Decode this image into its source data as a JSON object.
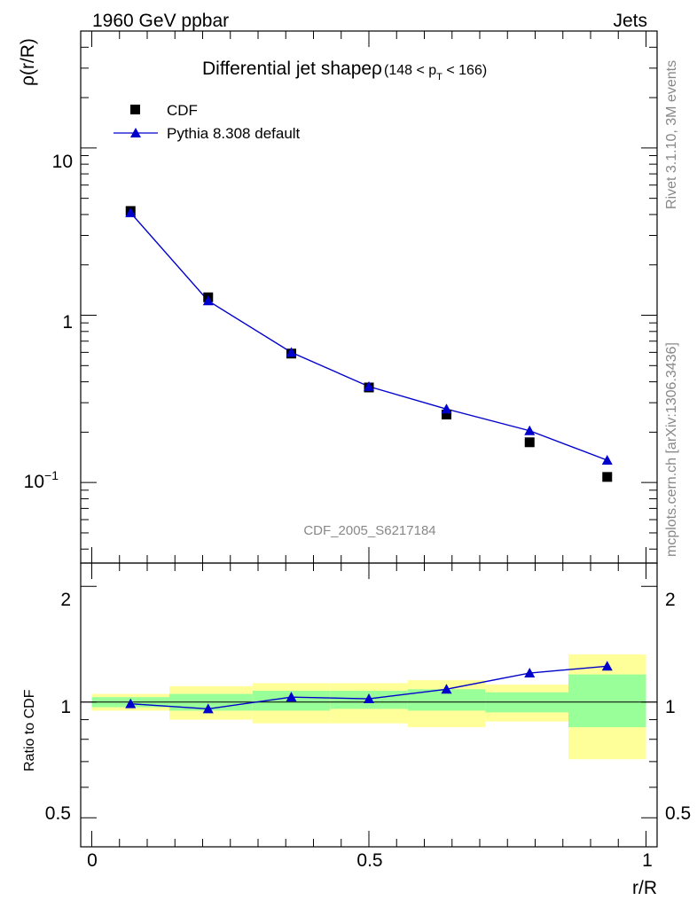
{
  "header": {
    "left": "1960 GeV ppbar",
    "right": "Jets",
    "side_rivet": "Rivet 3.1.10,  3M events",
    "side_mcplots": "mcplots.cern.ch [arXiv:1306.3436]"
  },
  "chart_data": [
    {
      "type": "scatter",
      "title": "Differential jet shapeρ",
      "title_range": "(148 < p",
      "title_sub": "T",
      "title_range_end": " < 166)",
      "ylabel": "ρ(r/R)",
      "yscale": "log",
      "ylim": [
        0.033,
        50
      ],
      "xlim": [
        -0.02,
        1.02
      ],
      "ytick_labels": [
        "10",
        "1",
        "10"
      ],
      "ytick_exponent": "−1",
      "watermark": "CDF_2005_S6217184",
      "legend": {
        "placement": "top-left",
        "data_label": "CDF",
        "mc_label": "Pythia 8.308 default"
      },
      "x": [
        0.07,
        0.21,
        0.36,
        0.5,
        0.64,
        0.79,
        0.93
      ],
      "series": [
        {
          "name": "CDF",
          "marker": "square",
          "color": "#000000",
          "values": [
            4.2,
            1.28,
            0.59,
            0.37,
            0.255,
            0.174,
            0.108
          ]
        },
        {
          "name": "Pythia 8.308 default",
          "marker": "triangle",
          "color": "#0000cc",
          "values": [
            4.1,
            1.22,
            0.6,
            0.375,
            0.275,
            0.204,
            0.136
          ]
        }
      ]
    },
    {
      "type": "line",
      "ylabel": "Ratio to CDF",
      "xlabel": "r/R",
      "ylim": [
        0.42,
        2.3
      ],
      "xlim": [
        -0.02,
        1.02
      ],
      "xtick_labels": [
        "0",
        "0.5",
        "1"
      ],
      "ytick_labels": [
        "2",
        "1",
        "0.5"
      ],
      "colors": {
        "band_outer": "#ffff99",
        "band_inner": "#99ff99",
        "line": "#0000cc"
      },
      "bins": [
        {
          "x0": 0.0,
          "x1": 0.14,
          "green": [
            0.97,
            1.03
          ],
          "yellow": [
            0.95,
            1.05
          ]
        },
        {
          "x0": 0.14,
          "x1": 0.29,
          "green": [
            0.95,
            1.05
          ],
          "yellow": [
            0.9,
            1.1
          ]
        },
        {
          "x0": 0.29,
          "x1": 0.43,
          "green": [
            0.95,
            1.07
          ],
          "yellow": [
            0.88,
            1.12
          ]
        },
        {
          "x0": 0.43,
          "x1": 0.57,
          "green": [
            0.96,
            1.07
          ],
          "yellow": [
            0.88,
            1.12
          ]
        },
        {
          "x0": 0.57,
          "x1": 0.71,
          "green": [
            0.95,
            1.08
          ],
          "yellow": [
            0.86,
            1.14
          ]
        },
        {
          "x0": 0.71,
          "x1": 0.86,
          "green": [
            0.94,
            1.06
          ],
          "yellow": [
            0.89,
            1.11
          ]
        },
        {
          "x0": 0.86,
          "x1": 1.0,
          "green": [
            0.86,
            1.18
          ],
          "yellow": [
            0.71,
            1.33
          ]
        }
      ],
      "x": [
        0.07,
        0.21,
        0.36,
        0.5,
        0.64,
        0.79,
        0.93
      ],
      "series": [
        {
          "name": "Pythia 8.308 default",
          "values": [
            0.99,
            0.96,
            1.03,
            1.02,
            1.08,
            1.19,
            1.24
          ]
        }
      ]
    }
  ]
}
